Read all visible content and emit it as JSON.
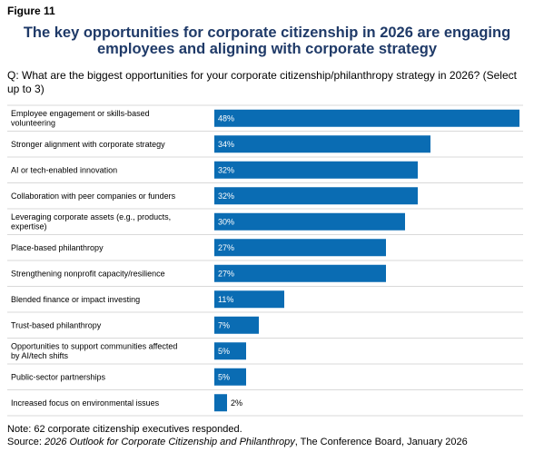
{
  "figure_label": "Figure 11",
  "title_line1": "The key opportunities for corporate citizenship in 2026 are engaging",
  "title_line2": "employees and aligning with corporate strategy",
  "question": "Q: What are the biggest opportunities for your corporate citizenship/philanthropy strategy in 2026? (Select up to 3)",
  "note": "Note: 62 corporate citizenship executives responded.",
  "source": {
    "prefix": "Source: ",
    "publication": "2026 Outlook for Corporate Citizenship and Philanthropy",
    "suffix": ", The Conference Board, January 2026"
  },
  "colors": {
    "bar": "#0a6cb3",
    "title": "#1f3a68",
    "divider": "#d9d9d9"
  },
  "chart_data": {
    "type": "bar",
    "orientation": "horizontal",
    "categories": [
      "Employee engagement or skills-based volunteering",
      "Stronger alignment with corporate strategy",
      "AI or tech-enabled innovation",
      "Collaboration with peer companies or funders",
      "Leveraging corporate assets (e.g., products, expertise)",
      "Place-based philanthropy",
      "Strengthening nonprofit capacity/resilience",
      "Blended finance or impact investing",
      "Trust-based philanthropy",
      "Opportunities to support communities affected by AI/tech shifts",
      "Public-sector partnerships",
      "Increased focus on environmental issues"
    ],
    "values": [
      48,
      34,
      32,
      32,
      30,
      27,
      27,
      11,
      7,
      5,
      5,
      2
    ],
    "value_labels": [
      "48%",
      "34%",
      "32%",
      "32%",
      "30%",
      "27%",
      "27%",
      "11%",
      "7%",
      "5%",
      "5%",
      "2%"
    ],
    "xlim": [
      0,
      48
    ]
  }
}
